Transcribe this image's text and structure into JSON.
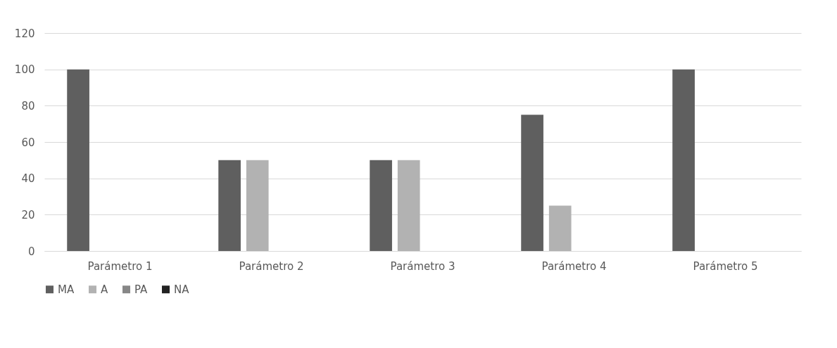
{
  "chart_data": {
    "type": "bar",
    "categories": [
      "Parámetro 1",
      "Parámetro 2",
      "Parámetro 3",
      "Parámetro 4",
      "Parámetro 5"
    ],
    "series": [
      {
        "name": "MA",
        "color": "#5f5f5f",
        "values": [
          100,
          50,
          50,
          75,
          100
        ]
      },
      {
        "name": "A",
        "color": "#b2b2b2",
        "values": [
          0,
          50,
          50,
          25,
          0
        ]
      },
      {
        "name": "PA",
        "color": "#878787",
        "values": [
          0,
          0,
          0,
          0,
          0
        ]
      },
      {
        "name": "NA",
        "color": "#222222",
        "values": [
          0,
          0,
          0,
          0,
          0
        ]
      }
    ],
    "ylim": [
      0,
      120
    ],
    "yticks": [
      0,
      20,
      40,
      60,
      80,
      100,
      120
    ],
    "grid": "y",
    "legend": "bottom"
  }
}
